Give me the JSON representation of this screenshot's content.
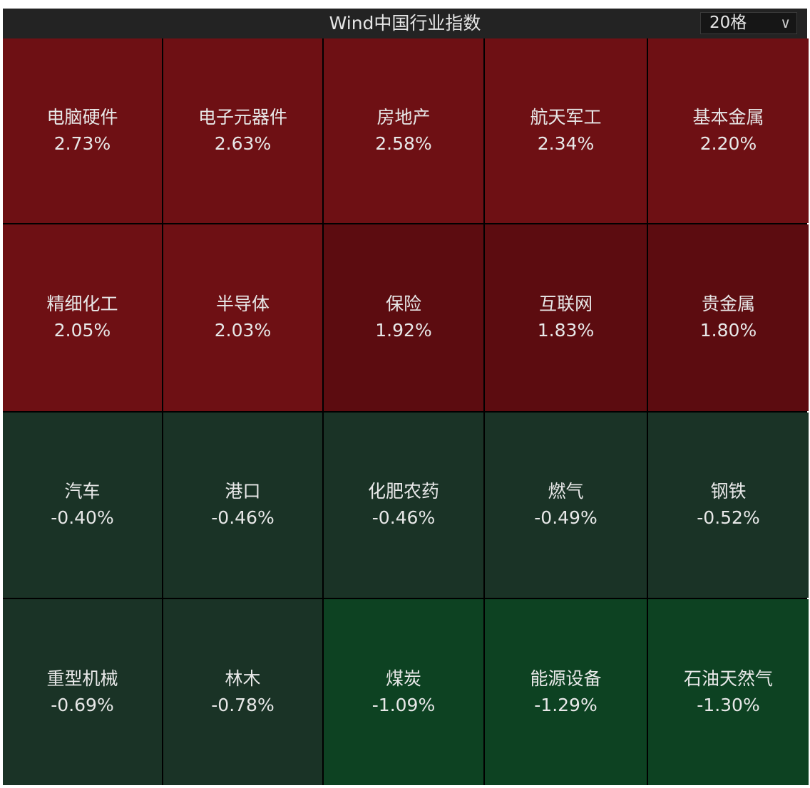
{
  "header": {
    "title": "Wind中国行业指数",
    "grid_select": "20格",
    "chevron_icon": "chevron-down-icon"
  },
  "colors": {
    "up": "#6e1014",
    "up_dark": "#5c0c10",
    "down": "#1a3326",
    "down_strong": "#0d4222"
  },
  "tiles": [
    {
      "name": "电脑硬件",
      "pct": "2.73%",
      "color": "#6e1014"
    },
    {
      "name": "电子元器件",
      "pct": "2.63%",
      "color": "#6e1014"
    },
    {
      "name": "房地产",
      "pct": "2.58%",
      "color": "#6e1014"
    },
    {
      "name": "航天军工",
      "pct": "2.34%",
      "color": "#6e1014"
    },
    {
      "name": "基本金属",
      "pct": "2.20%",
      "color": "#6e1014"
    },
    {
      "name": "精细化工",
      "pct": "2.05%",
      "color": "#6e1014"
    },
    {
      "name": "半导体",
      "pct": "2.03%",
      "color": "#6e1014"
    },
    {
      "name": "保险",
      "pct": "1.92%",
      "color": "#5c0c10"
    },
    {
      "name": "互联网",
      "pct": "1.83%",
      "color": "#5c0c10"
    },
    {
      "name": "贵金属",
      "pct": "1.80%",
      "color": "#5c0c10"
    },
    {
      "name": "汽车",
      "pct": "-0.40%",
      "color": "#1a3326"
    },
    {
      "name": "港口",
      "pct": "-0.46%",
      "color": "#1a3326"
    },
    {
      "name": "化肥农药",
      "pct": "-0.46%",
      "color": "#1a3326"
    },
    {
      "name": "燃气",
      "pct": "-0.49%",
      "color": "#1a3326"
    },
    {
      "name": "钢铁",
      "pct": "-0.52%",
      "color": "#1a3326"
    },
    {
      "name": "重型机械",
      "pct": "-0.69%",
      "color": "#1a3326"
    },
    {
      "name": "林木",
      "pct": "-0.78%",
      "color": "#1a3326"
    },
    {
      "name": "煤炭",
      "pct": "-1.09%",
      "color": "#0d4222"
    },
    {
      "name": "能源设备",
      "pct": "-1.29%",
      "color": "#0d4222"
    },
    {
      "name": "石油天然气",
      "pct": "-1.30%",
      "color": "#0d4222"
    }
  ]
}
